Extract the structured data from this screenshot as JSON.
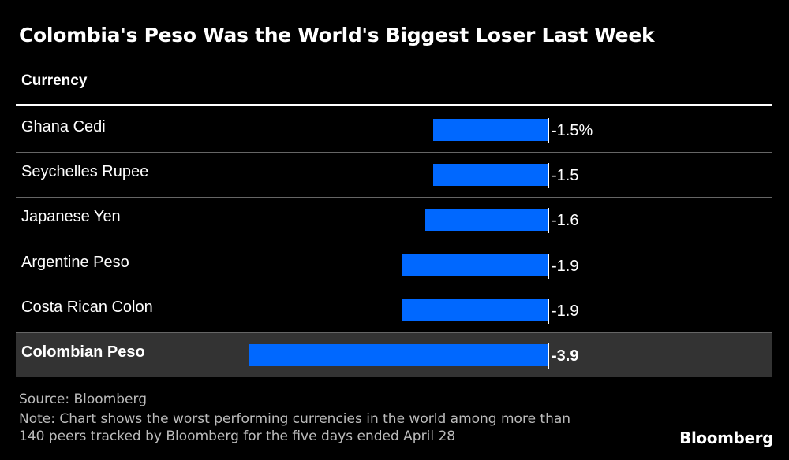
{
  "title": "Colombia's Peso Was the World's Biggest Loser Last Week",
  "column_header": "Currency",
  "chart_data": {
    "type": "bar",
    "orientation": "horizontal",
    "categories": [
      "Ghana Cedi",
      "Seychelles Rupee",
      "Japanese Yen",
      "Argentine Peso",
      "Costa Rican Colon",
      "Colombian Peso"
    ],
    "values": [
      -1.5,
      -1.5,
      -1.6,
      -1.9,
      -1.9,
      -3.9
    ],
    "value_labels": [
      "-1.5%",
      "-1.5",
      "-1.6",
      "-1.9",
      "-1.9",
      "-3.9"
    ],
    "highlighted_category": "Colombian Peso",
    "bar_color": "#0068ff",
    "highlight_row_color": "#333333",
    "xlim": [
      -4.0,
      0
    ],
    "grid": false,
    "legend": "none"
  },
  "source": "Source: Bloomberg",
  "note_lines": [
    "Note: Chart shows the worst performing currencies in the world among more than",
    "140 peers tracked by Bloomberg for the five days ended April 28"
  ],
  "brand": "Bloomberg"
}
